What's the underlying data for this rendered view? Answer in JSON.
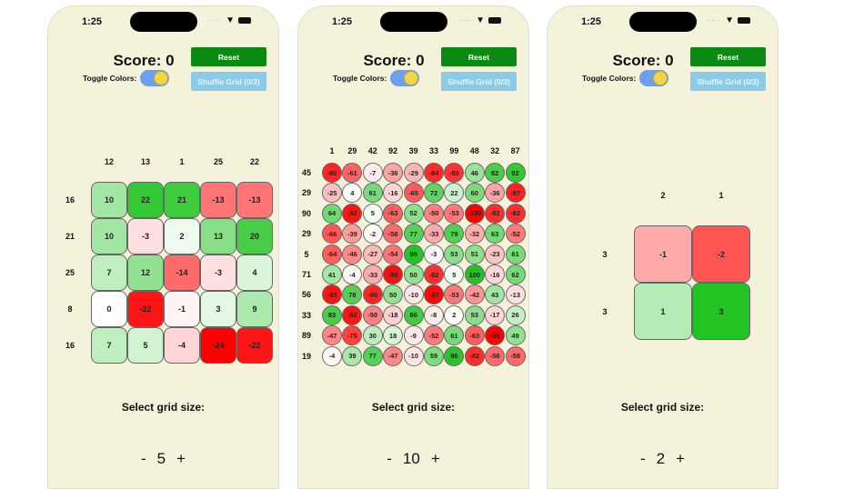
{
  "phones": [
    {
      "status_time": "1:25",
      "score_label": "Score: 0",
      "toggle_label": "Toggle Colors:",
      "toggle_on": true,
      "reset_label": "Reset",
      "shuffle_label": "Shuffle Grid (0/3)",
      "select_label": "Select grid size:",
      "minus": "-",
      "plus": "+",
      "grid_size": "5",
      "col_headers": [
        "12",
        "13",
        "1",
        "25",
        "22"
      ],
      "row_headers": [
        "16",
        "21",
        "25",
        "8",
        "16"
      ],
      "values": [
        [
          10,
          22,
          21,
          -13,
          -13
        ],
        [
          10,
          -3,
          2,
          13,
          20
        ],
        [
          7,
          12,
          -14,
          -3,
          4
        ],
        [
          0,
          -22,
          -1,
          3,
          9
        ],
        [
          7,
          5,
          -4,
          -24,
          -22
        ]
      ],
      "shape": "rounded-square"
    },
    {
      "status_time": "1:25",
      "score_label": "Score: 0",
      "toggle_label": "Toggle Colors:",
      "toggle_on": true,
      "reset_label": "Reset",
      "shuffle_label": "Shuffle Grid (0/3)",
      "select_label": "Select grid size:",
      "minus": "-",
      "plus": "+",
      "grid_size": "10",
      "col_headers": [
        "1",
        "29",
        "42",
        "92",
        "39",
        "33",
        "99",
        "48",
        "32",
        "87"
      ],
      "row_headers": [
        "45",
        "29",
        "90",
        "29",
        "5",
        "71",
        "56",
        "33",
        "89",
        "19"
      ],
      "values": [
        [
          -86,
          -61,
          -7,
          -36,
          -29,
          -84,
          -80,
          46,
          82,
          92
        ],
        [
          -25,
          4,
          61,
          -16,
          -65,
          72,
          22,
          60,
          -36,
          -87
        ],
        [
          64,
          -92,
          5,
          -63,
          52,
          -50,
          -53,
          -100,
          -82,
          -82
        ],
        [
          -66,
          -39,
          -2,
          -58,
          77,
          -33,
          79,
          -32,
          63,
          -52
        ],
        [
          -64,
          -46,
          -27,
          -54,
          98,
          -3,
          53,
          51,
          -23,
          61
        ],
        [
          41,
          -4,
          -33,
          -95,
          50,
          -82,
          5,
          100,
          -16,
          62
        ],
        [
          -93,
          78,
          -86,
          50,
          -10,
          -97,
          -53,
          -42,
          43,
          -13
        ],
        [
          83,
          -92,
          -50,
          -18,
          86,
          -8,
          2,
          53,
          -17,
          26
        ],
        [
          -47,
          -75,
          30,
          18,
          -9,
          -52,
          61,
          -63,
          -99,
          49
        ],
        [
          -4,
          39,
          77,
          -47,
          -10,
          59,
          96,
          -82,
          -58,
          -58
        ]
      ],
      "shape": "circle"
    },
    {
      "status_time": "1:25",
      "score_label": "Score: 0",
      "toggle_label": "Toggle Colors:",
      "toggle_on": true,
      "reset_label": "Reset",
      "shuffle_label": "Shuffle Grid (0/3)",
      "select_label": "Select grid size:",
      "minus": "-",
      "plus": "+",
      "grid_size": "2",
      "col_headers": [
        "2",
        "1"
      ],
      "row_headers": [
        "3",
        "3"
      ],
      "values": [
        [
          -1,
          -2
        ],
        [
          1,
          3
        ]
      ],
      "shape": "rounded-square"
    }
  ],
  "colors": {
    "positive": "#22c322",
    "negative": "#ff0000",
    "reset": "#0b8a12",
    "shuffle": "#8ccbe8",
    "background": "#f5f2dc"
  }
}
